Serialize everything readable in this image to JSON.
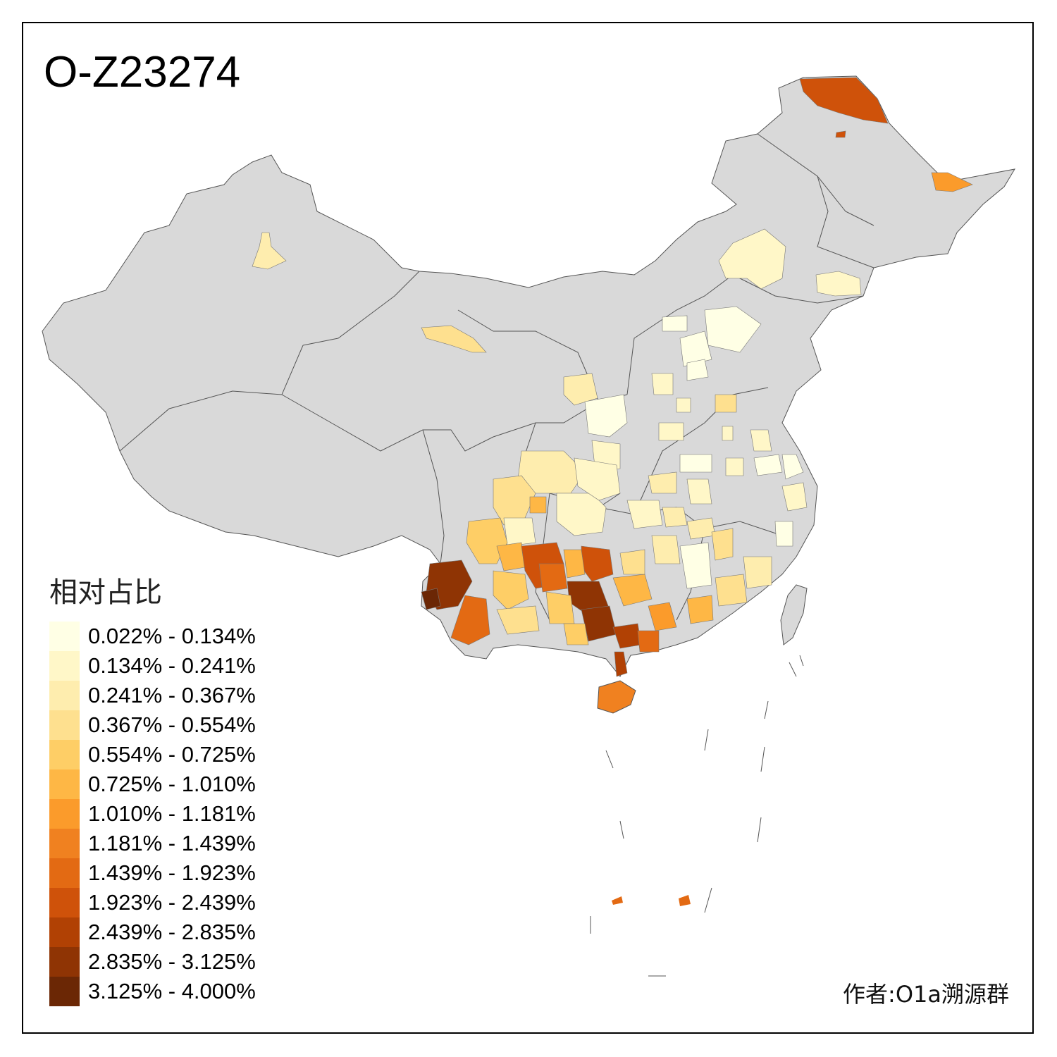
{
  "title": "O-Z23274",
  "legend": {
    "title": "相对占比",
    "items": [
      {
        "label": "0.022% - 0.134%",
        "color": "#FFFFE5"
      },
      {
        "label": "0.134% - 0.241%",
        "color": "#FFF7C8"
      },
      {
        "label": "0.241% - 0.367%",
        "color": "#FEEDAE"
      },
      {
        "label": "0.367% - 0.554%",
        "color": "#FEE08F"
      },
      {
        "label": "0.554% - 0.725%",
        "color": "#FECE66"
      },
      {
        "label": "0.725% - 1.010%",
        "color": "#FEB745"
      },
      {
        "label": "1.010% - 1.181%",
        "color": "#FB9B2B"
      },
      {
        "label": "1.181% - 1.439%",
        "color": "#F08120"
      },
      {
        "label": "1.439% - 1.923%",
        "color": "#E36A13"
      },
      {
        "label": "1.923% - 2.439%",
        "color": "#CF520A"
      },
      {
        "label": "2.439% - 2.835%",
        "color": "#B14104"
      },
      {
        "label": "2.835% - 3.125%",
        "color": "#8F3404"
      },
      {
        "label": "3.125% - 4.000%",
        "color": "#6B2705"
      }
    ]
  },
  "author": "作者:O1a溯源群",
  "map": {
    "base_color": "#D9D9D9",
    "border_color": "#555555"
  }
}
